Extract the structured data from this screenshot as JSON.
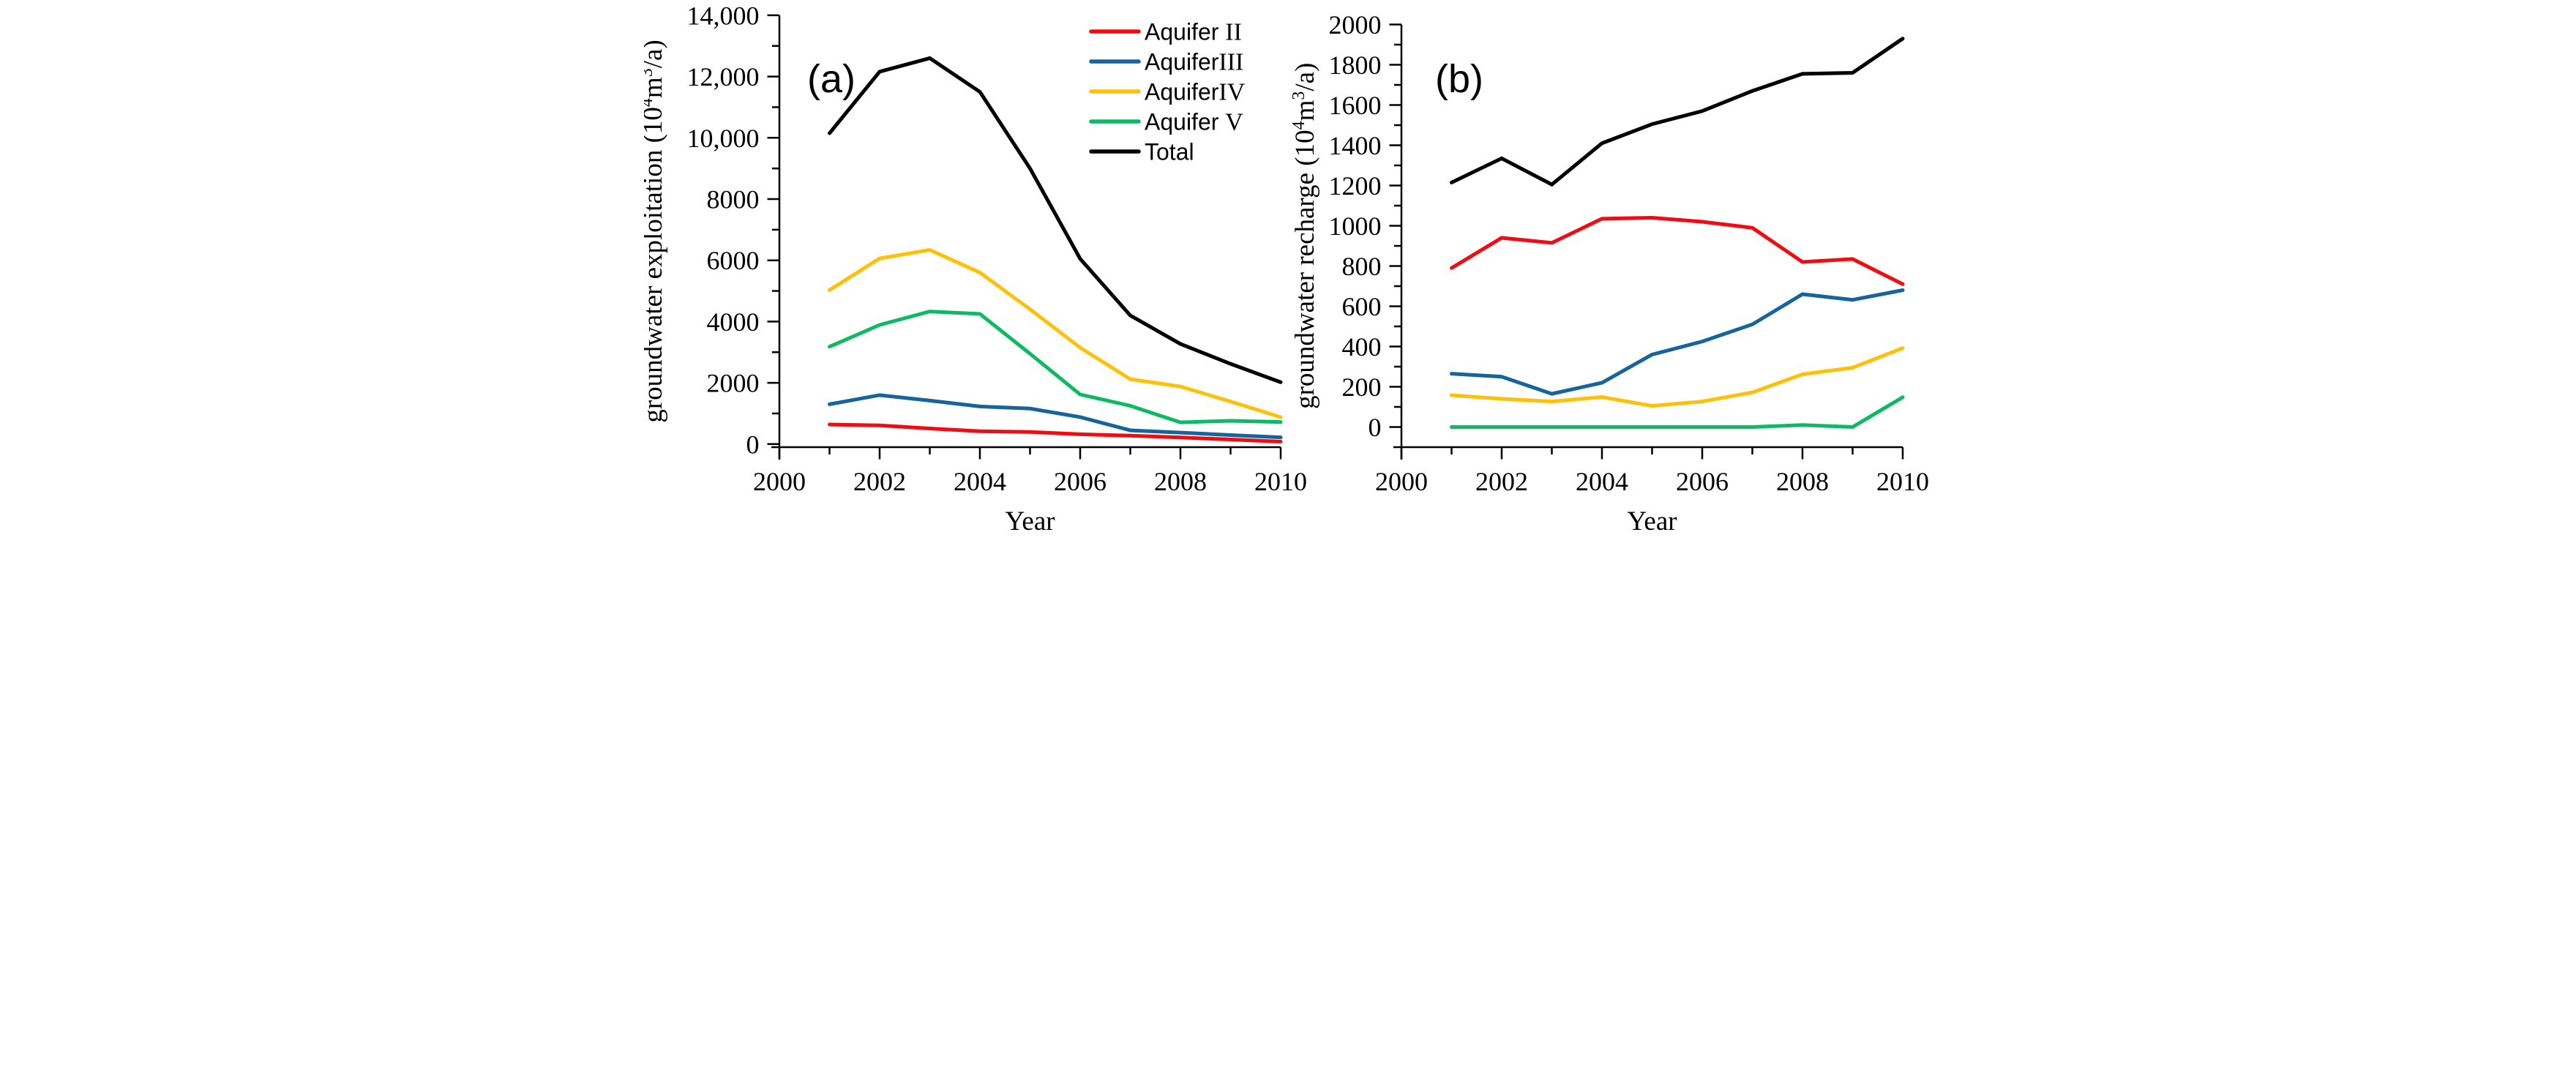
{
  "figure": {
    "background": "#ffffff",
    "text_color": "#000000"
  },
  "chart_data": [
    {
      "id": "a",
      "type": "line",
      "panel_label": "(a)",
      "xlabel": "Year",
      "ylabel": "groundwater exploitation (10⁴m³/a)",
      "xlim": [
        2000,
        2010
      ],
      "ylim": [
        0,
        14000
      ],
      "x_tick_major": 2,
      "x_tick_minor": 1,
      "y_tick_major": 2000,
      "y_tick_minor": 1000,
      "x_tick_labels": [
        "2000",
        "2002",
        "2004",
        "2006",
        "2008",
        "2010"
      ],
      "y_tick_labels": [
        "0",
        "2000",
        "4000",
        "6000",
        "8000",
        "10,000",
        "12,000",
        "14,000"
      ],
      "grid": false,
      "x": [
        2001,
        2002,
        2003,
        2004,
        2005,
        2006,
        2007,
        2008,
        2009,
        2010
      ],
      "series": [
        {
          "name": "Aquifer II",
          "color": "#f40b12",
          "values": [
            640,
            610,
            510,
            420,
            395,
            320,
            275,
            215,
            150,
            80
          ]
        },
        {
          "name": "Aquifer III",
          "color": "#15649e",
          "values": [
            1300,
            1600,
            1420,
            1230,
            1160,
            880,
            450,
            375,
            295,
            220
          ]
        },
        {
          "name": "Aquifer IV",
          "color": "#ffc007",
          "values": [
            5030,
            6060,
            6340,
            5600,
            4400,
            3150,
            2120,
            1880,
            1390,
            880
          ]
        },
        {
          "name": "Aquifer V",
          "color": "#0cba62",
          "values": [
            3180,
            3890,
            4330,
            4250,
            2950,
            1620,
            1250,
            710,
            760,
            720
          ]
        },
        {
          "name": "Total",
          "color": "#000000",
          "values": [
            10150,
            12160,
            12600,
            11500,
            9000,
            6050,
            4200,
            3270,
            2620,
            2020
          ]
        }
      ],
      "legend": {
        "visible": true,
        "position": "top-center",
        "entries": [
          {
            "prefix": "Aquifer ",
            "numeral": "II"
          },
          {
            "prefix": "Aquifer",
            "numeral": "III"
          },
          {
            "prefix": "Aquifer",
            "numeral": "IV"
          },
          {
            "prefix": "Aquifer ",
            "numeral": "V"
          },
          {
            "prefix": "Total",
            "numeral": ""
          }
        ]
      }
    },
    {
      "id": "b",
      "type": "line",
      "panel_label": "(b)",
      "xlabel": "Year",
      "ylabel": "groundwater recharge (10⁴m³/a)",
      "xlim": [
        2000,
        2010
      ],
      "ylim": [
        0,
        2000
      ],
      "x_tick_major": 2,
      "x_tick_minor": 1,
      "y_tick_major": 200,
      "y_tick_minor": 100,
      "x_tick_labels": [
        "2000",
        "2002",
        "2004",
        "2006",
        "2008",
        "2010"
      ],
      "y_tick_labels": [
        "0",
        "200",
        "400",
        "600",
        "800",
        "1000",
        "1200",
        "1400",
        "1600",
        "1800",
        "2000"
      ],
      "grid": false,
      "x": [
        2001,
        2002,
        2003,
        2004,
        2005,
        2006,
        2007,
        2008,
        2009,
        2010
      ],
      "series": [
        {
          "name": "Aquifer II",
          "color": "#f40b12",
          "values": [
            790,
            940,
            915,
            1035,
            1040,
            1020,
            990,
            820,
            835,
            710
          ]
        },
        {
          "name": "Aquifer III",
          "color": "#15649e",
          "values": [
            265,
            250,
            165,
            220,
            360,
            425,
            510,
            660,
            632,
            680
          ]
        },
        {
          "name": "Aquifer IV",
          "color": "#ffc007",
          "values": [
            158,
            140,
            127,
            149,
            105,
            127,
            172,
            262,
            295,
            392
          ]
        },
        {
          "name": "Aquifer V",
          "color": "#0cba62",
          "values": [
            0,
            0,
            0,
            0,
            0,
            0,
            0,
            10,
            0,
            148
          ]
        },
        {
          "name": "Total",
          "color": "#000000",
          "values": [
            1215,
            1335,
            1205,
            1410,
            1505,
            1570,
            1670,
            1755,
            1760,
            1930
          ]
        }
      ],
      "legend": {
        "visible": false
      }
    }
  ]
}
